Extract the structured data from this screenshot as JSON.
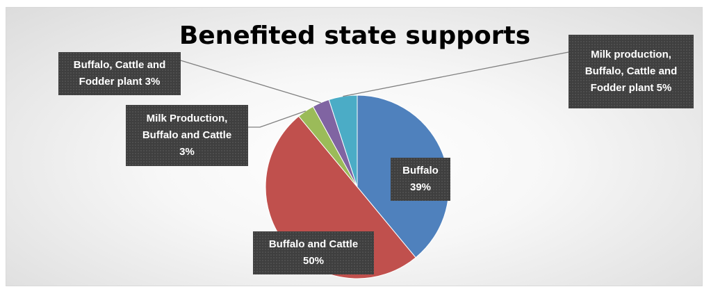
{
  "chart_data": {
    "type": "pie",
    "title": "Benefited state supports",
    "start_angle_deg": 0,
    "direction": "clockwise",
    "slices": [
      {
        "name": "Buffalo",
        "value": 39,
        "color": "#4f81bd",
        "label_lines": [
          "Buffalo",
          "39%"
        ]
      },
      {
        "name": "Buffalo and Cattle",
        "value": 50,
        "color": "#c0504d",
        "label_lines": [
          "Buffalo and Cattle",
          "50%"
        ]
      },
      {
        "name": "Milk Production, Buffalo and Cattle",
        "value": 3,
        "color": "#9bbb59",
        "label_lines": [
          "Milk Production,",
          "Buffalo and Cattle",
          "3%"
        ]
      },
      {
        "name": "Buffalo, Cattle and Fodder plant",
        "value": 3,
        "color": "#8064a2",
        "label_lines": [
          "Buffalo, Cattle and",
          "Fodder plant 3%"
        ]
      },
      {
        "name": "Milk production, Buffalo, Cattle and Fodder plant",
        "value": 5,
        "color": "#4bacc6",
        "label_lines": [
          "Milk production,",
          "Buffalo, Cattle and",
          "Fodder plant 5%"
        ]
      }
    ],
    "legend": "none",
    "data_labels": "callouts"
  }
}
